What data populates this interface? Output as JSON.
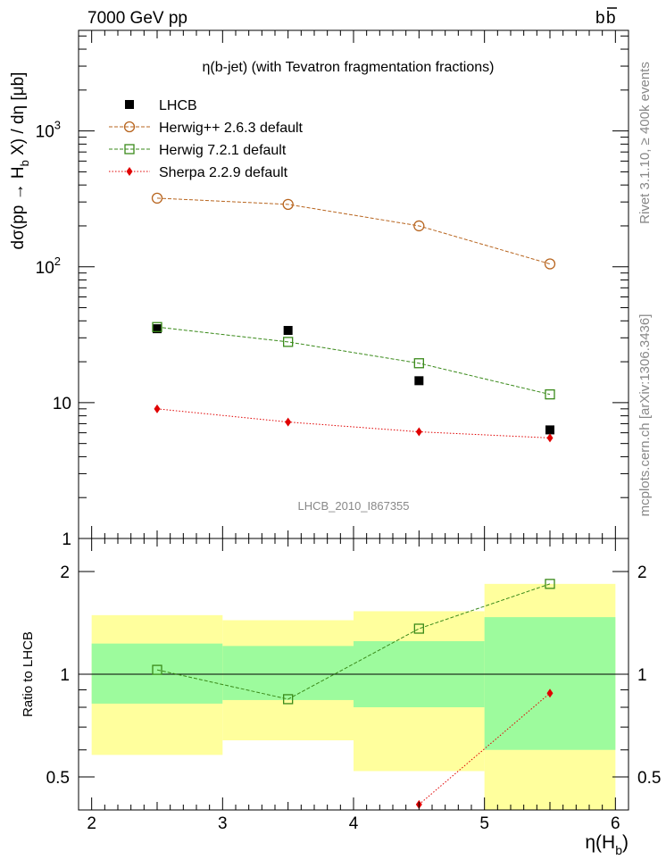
{
  "header": {
    "left": "7000 GeV pp",
    "right_main": "b",
    "right_bar": "b"
  },
  "side_labels": {
    "rivet": "Rivet 3.1.10, ≥ 400k events",
    "mcplots": "mcplots.cern.ch [arXiv:1306.3436]"
  },
  "chart_data": [
    {
      "type": "scatter",
      "title": "η(b-jet) (with Tevatron fragmentation fractions)",
      "watermark": "LHCB_2010_I867355",
      "ylabel_parts": [
        "dσ(pp → H",
        "b",
        " X) / dη [μb]"
      ],
      "yscale": "log",
      "ylim": [
        1.0,
        5500
      ],
      "xlim": [
        1.9,
        6.1
      ],
      "y_tick_labels": [
        {
          "value": 1,
          "label": "1"
        },
        {
          "value": 10,
          "label": "10"
        },
        {
          "value": 100,
          "label": "10",
          "sup": "2"
        },
        {
          "value": 1000,
          "label": "10",
          "sup": "3"
        }
      ],
      "x": [
        2.5,
        3.5,
        4.5,
        5.5
      ],
      "legend": {
        "placement": "top-left"
      },
      "series": [
        {
          "name": "LHCB",
          "key": "data",
          "marker": "filled-square",
          "color": "#000000",
          "values": [
            35,
            34,
            14.5,
            6.3
          ]
        },
        {
          "name": "Herwig++ 2.6.3 default",
          "key": "herwigpp",
          "marker": "open-circle",
          "color": "#b8651f",
          "values": [
            320,
            288,
            200,
            105
          ]
        },
        {
          "name": "Herwig 7.2.1 default",
          "key": "herwig7",
          "marker": "open-square",
          "color": "#3a8a1a",
          "values": [
            36,
            28,
            19.5,
            11.5
          ]
        },
        {
          "name": "Sherpa 2.2.9 default",
          "key": "sherpa",
          "marker": "filled-diamond",
          "color": "#e00000",
          "values": [
            9.0,
            7.2,
            6.1,
            5.5
          ]
        }
      ]
    },
    {
      "type": "scatter",
      "ylabel": "Ratio to LHCB",
      "xlabel_parts": [
        "η(H",
        "b",
        ")"
      ],
      "yscale": "log",
      "ylim": [
        0.4,
        2.5
      ],
      "xlim": [
        1.9,
        6.1
      ],
      "y_tick_labels": [
        {
          "value": 0.5,
          "label": "0.5"
        },
        {
          "value": 1,
          "label": "1"
        },
        {
          "value": 2,
          "label": "2"
        }
      ],
      "x_tick_labels": [
        "2",
        "3",
        "4",
        "5",
        "6"
      ],
      "bands": [
        {
          "x": [
            2,
            3
          ],
          "stat": [
            0.82,
            1.23
          ],
          "total": [
            0.58,
            1.49
          ]
        },
        {
          "x": [
            3,
            4
          ],
          "stat": [
            0.84,
            1.21
          ],
          "total": [
            0.64,
            1.44
          ]
        },
        {
          "x": [
            4,
            5
          ],
          "stat": [
            0.8,
            1.25
          ],
          "total": [
            0.52,
            1.53
          ]
        },
        {
          "x": [
            5,
            6
          ],
          "stat": [
            0.6,
            1.47
          ],
          "total": [
            0.4,
            1.84
          ]
        }
      ],
      "band_colors": {
        "stat": "#9dfb9d",
        "total": "#ffff9d"
      },
      "series": [
        {
          "name": "Herwig 7.2.1 default",
          "key": "herwig7",
          "marker": "open-square",
          "color": "#3a8a1a",
          "x": [
            2.5,
            3.5,
            4.5,
            5.5
          ],
          "values": [
            1.03,
            0.845,
            1.36,
            1.84
          ]
        },
        {
          "name": "Sherpa 2.2.9 default",
          "key": "sherpa",
          "marker": "filled-diamond",
          "color": "#e00000",
          "x": [
            4.5,
            5.5
          ],
          "values": [
            0.415,
            0.88
          ]
        }
      ]
    }
  ]
}
